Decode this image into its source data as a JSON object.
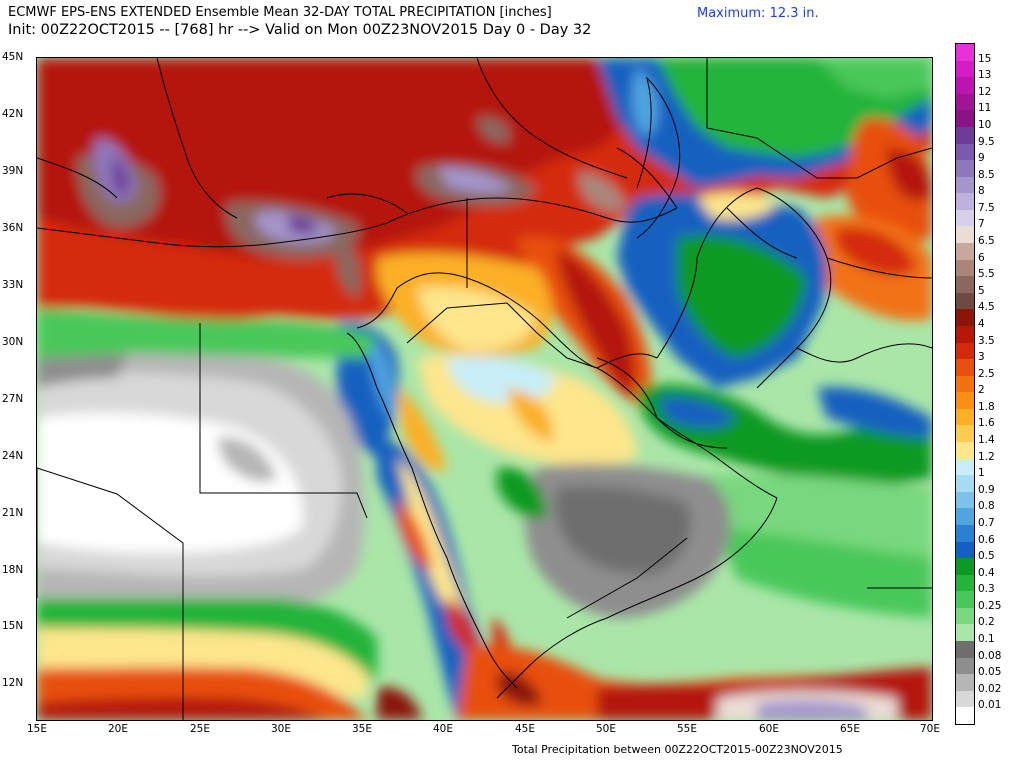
{
  "header": {
    "line1": "ECMWF EPS-ENS EXTENDED Ensemble Mean 32-DAY TOTAL PRECIPITATION [inches]",
    "line2": "Init: 00Z22OCT2015 -- [768] hr --> Valid on Mon 00Z23NOV2015  Day 0 - Day 32",
    "maximum": "Maximum:  12.3 in."
  },
  "footer": "Total Precipitation between 00Z22OCT2015-00Z23NOV2015",
  "axes": {
    "lat_labels": [
      "45N",
      "42N",
      "39N",
      "36N",
      "33N",
      "30N",
      "27N",
      "24N",
      "21N",
      "18N",
      "15N",
      "12N"
    ],
    "lon_labels": [
      "15E",
      "20E",
      "25E",
      "30E",
      "35E",
      "40E",
      "45E",
      "50E",
      "55E",
      "60E",
      "65E",
      "70E"
    ]
  },
  "colorbar": {
    "levels": [
      "15",
      "13",
      "12",
      "11",
      "10",
      "9.5",
      "9",
      "8.5",
      "8",
      "7.5",
      "7",
      "6.5",
      "6",
      "5.5",
      "5",
      "4.5",
      "4",
      "3.5",
      "3",
      "2.5",
      "2",
      "1.8",
      "1.6",
      "1.4",
      "1.2",
      "1",
      "0.9",
      "0.8",
      "0.7",
      "0.6",
      "0.5",
      "0.4",
      "0.3",
      "0.25",
      "0.2",
      "0.1",
      "0.08",
      "0.05",
      "0.02",
      "0.01"
    ],
    "colors": [
      "#e832d8",
      "#d21ec2",
      "#bc14ae",
      "#a01498",
      "#8a1486",
      "#6c3c98",
      "#7a5aac",
      "#8e78bc",
      "#a496cc",
      "#bcb2dc",
      "#d6d0ea",
      "#ecdcd6",
      "#c8a89c",
      "#aa867a",
      "#8a685e",
      "#6e4a40",
      "#8a1608",
      "#b41808",
      "#d42a0c",
      "#e8500e",
      "#f27212",
      "#f89018",
      "#fbb028",
      "#fccc50",
      "#fde68c",
      "#c8eef8",
      "#a6dcf2",
      "#7cc2ea",
      "#50a4e0",
      "#2a80d2",
      "#1260c0",
      "#0c9a24",
      "#24b43a",
      "#48c85a",
      "#78d87e",
      "#aae6a8",
      "#6e6e6e",
      "#8e8e8e",
      "#b6b6b6",
      "#d8d8d8",
      "#ffffff"
    ]
  }
}
